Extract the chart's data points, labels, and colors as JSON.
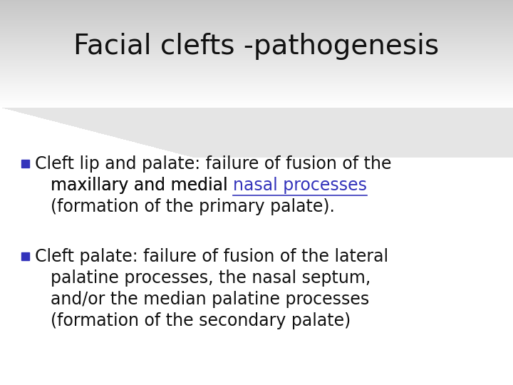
{
  "title": "Facial clefts -pathogenesis",
  "title_fontsize": 28,
  "title_color": "#111111",
  "bullet_color": "#3333bb",
  "text_color": "#111111",
  "link_color": "#3333bb",
  "bullet1_line1": "Cleft lip and palate: failure of fusion of the",
  "bullet1_line2_pre": "maxillary and medial ",
  "bullet1_line2_link": "nasal processes",
  "bullet1_line3": "(formation of the primary palate).",
  "bullet2_line1": "Cleft palate: failure of fusion of the lateral",
  "bullet2_line2": "palatine processes, the nasal septum,",
  "bullet2_line3": "and/or the median palatine processes",
  "bullet2_line4": "(formation of the secondary palate)",
  "body_fontsize": 17,
  "fig_width": 7.2,
  "fig_height": 5.4,
  "dpi": 100
}
